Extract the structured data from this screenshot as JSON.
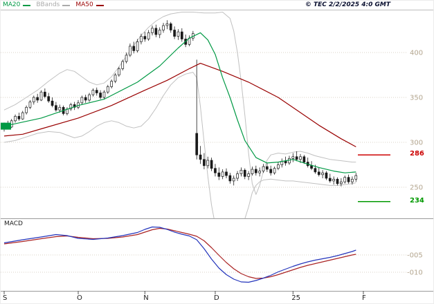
{
  "header": {
    "legend": [
      {
        "label": "MA20",
        "color": "#009944"
      },
      {
        "label": "BBands",
        "color": "#aaaaaa"
      },
      {
        "label": "MA50",
        "color": "#990000"
      }
    ],
    "copyright": "© TEC 2/2/2025 4:0 GMT"
  },
  "macd_panel": {
    "label": "MACD"
  },
  "colors": {
    "ma20": "#009944",
    "ma50": "#990000",
    "bbands": "#c0c0c0",
    "candle": "#1a1a1a",
    "gridline": "#d9d2c6",
    "axis_text": "#b3a58e",
    "separator": "#9a9a9a",
    "month_text": "#222222",
    "macd_line": "#2233bb",
    "macd_signal": "#aa2222"
  },
  "chart_data": {
    "type": "candlestick",
    "title": "",
    "x_axis": {
      "ticks": [
        {
          "label": "S",
          "i": 0
        },
        {
          "label": "O",
          "i": 20
        },
        {
          "label": "N",
          "i": 38
        },
        {
          "label": "D",
          "i": 57
        },
        {
          "label": "25",
          "i": 78
        },
        {
          "label": "F",
          "i": 97
        }
      ]
    },
    "y_axis": {
      "tick_values": [
        400,
        350,
        300,
        250
      ],
      "range": [
        215,
        447
      ],
      "grid": true
    },
    "levels": [
      {
        "value": 286,
        "color": "#cc0000",
        "role": "resistance"
      },
      {
        "value": 234,
        "color": "#009900",
        "role": "support"
      }
    ],
    "candles_ohlc": [
      [
        316,
        322,
        312,
        319
      ],
      [
        319,
        324,
        315,
        317
      ],
      [
        317,
        326,
        316,
        324
      ],
      [
        324,
        331,
        322,
        329
      ],
      [
        329,
        333,
        324,
        326
      ],
      [
        326,
        335,
        325,
        333
      ],
      [
        333,
        341,
        331,
        339
      ],
      [
        339,
        347,
        337,
        345
      ],
      [
        345,
        352,
        342,
        350
      ],
      [
        350,
        354,
        344,
        347
      ],
      [
        347,
        358,
        346,
        356
      ],
      [
        356,
        360,
        349,
        351
      ],
      [
        351,
        355,
        344,
        346
      ],
      [
        346,
        350,
        339,
        341
      ],
      [
        341,
        345,
        334,
        336
      ],
      [
        336,
        342,
        333,
        339
      ],
      [
        339,
        341,
        330,
        332
      ],
      [
        332,
        339,
        330,
        337
      ],
      [
        337,
        344,
        335,
        342
      ],
      [
        342,
        345,
        336,
        339
      ],
      [
        339,
        347,
        337,
        344
      ],
      [
        344,
        352,
        342,
        350
      ],
      [
        350,
        353,
        344,
        347
      ],
      [
        347,
        355,
        345,
        353
      ],
      [
        353,
        360,
        351,
        358
      ],
      [
        358,
        361,
        352,
        355
      ],
      [
        355,
        358,
        348,
        350
      ],
      [
        350,
        358,
        348,
        356
      ],
      [
        356,
        364,
        354,
        362
      ],
      [
        362,
        370,
        360,
        368
      ],
      [
        368,
        377,
        366,
        375
      ],
      [
        375,
        384,
        373,
        382
      ],
      [
        382,
        392,
        380,
        390
      ],
      [
        390,
        400,
        388,
        397
      ],
      [
        397,
        410,
        395,
        407
      ],
      [
        407,
        412,
        399,
        402
      ],
      [
        402,
        415,
        400,
        412
      ],
      [
        412,
        421,
        409,
        418
      ],
      [
        418,
        423,
        412,
        415
      ],
      [
        415,
        425,
        413,
        422
      ],
      [
        422,
        430,
        419,
        427
      ],
      [
        427,
        431,
        417,
        420
      ],
      [
        420,
        428,
        416,
        425
      ],
      [
        425,
        433,
        422,
        430
      ],
      [
        430,
        436,
        426,
        432
      ],
      [
        432,
        434,
        422,
        425
      ],
      [
        425,
        429,
        415,
        418
      ],
      [
        418,
        426,
        414,
        423
      ],
      [
        423,
        427,
        412,
        415
      ],
      [
        415,
        420,
        406,
        409
      ],
      [
        409,
        419,
        407,
        416
      ],
      [
        416,
        424,
        413,
        421
      ],
      [
        310,
        392,
        281,
        286
      ],
      [
        286,
        296,
        276,
        281
      ],
      [
        281,
        288,
        270,
        274
      ],
      [
        274,
        284,
        271,
        280
      ],
      [
        280,
        283,
        268,
        271
      ],
      [
        271,
        276,
        262,
        266
      ],
      [
        266,
        272,
        258,
        262
      ],
      [
        262,
        270,
        259,
        267
      ],
      [
        267,
        271,
        260,
        263
      ],
      [
        263,
        266,
        254,
        257
      ],
      [
        257,
        263,
        252,
        260
      ],
      [
        260,
        268,
        257,
        265
      ],
      [
        265,
        272,
        262,
        269
      ],
      [
        269,
        271,
        259,
        262
      ],
      [
        262,
        268,
        258,
        265
      ],
      [
        265,
        273,
        263,
        270
      ],
      [
        270,
        274,
        263,
        266
      ],
      [
        266,
        272,
        262,
        268
      ],
      [
        268,
        276,
        266,
        273
      ],
      [
        273,
        277,
        267,
        270
      ],
      [
        270,
        274,
        263,
        266
      ],
      [
        266,
        273,
        264,
        271
      ],
      [
        271,
        278,
        269,
        275
      ],
      [
        275,
        282,
        272,
        279
      ],
      [
        279,
        284,
        274,
        277
      ],
      [
        277,
        285,
        275,
        282
      ],
      [
        282,
        288,
        278,
        284
      ],
      [
        284,
        290,
        279,
        281
      ],
      [
        281,
        287,
        277,
        284
      ],
      [
        284,
        286,
        276,
        278
      ],
      [
        278,
        283,
        272,
        274
      ],
      [
        274,
        279,
        269,
        271
      ],
      [
        271,
        275,
        265,
        267
      ],
      [
        267,
        272,
        262,
        264
      ],
      [
        264,
        269,
        260,
        266
      ],
      [
        266,
        268,
        258,
        260
      ],
      [
        260,
        265,
        255,
        257
      ],
      [
        257,
        262,
        253,
        259
      ],
      [
        259,
        261,
        252,
        254
      ],
      [
        254,
        260,
        251,
        256
      ],
      [
        256,
        263,
        254,
        261
      ],
      [
        261,
        264,
        254,
        256
      ],
      [
        256,
        262,
        253,
        259
      ],
      [
        259,
        266,
        256,
        263
      ]
    ],
    "overlays": {
      "ma20": [
        [
          0,
          318
        ],
        [
          10,
          327
        ],
        [
          20,
          341
        ],
        [
          27,
          348
        ],
        [
          36,
          367
        ],
        [
          42,
          385
        ],
        [
          47,
          405
        ],
        [
          50,
          416
        ],
        [
          53,
          422
        ],
        [
          55,
          414
        ],
        [
          57,
          398
        ],
        [
          59,
          372
        ],
        [
          61,
          350
        ],
        [
          63,
          325
        ],
        [
          65,
          302
        ],
        [
          68,
          283
        ],
        [
          71,
          277
        ],
        [
          74,
          278
        ],
        [
          78,
          281
        ],
        [
          81,
          277
        ],
        [
          85,
          272
        ],
        [
          89,
          268
        ],
        [
          92,
          266
        ],
        [
          95,
          267
        ]
      ],
      "ma50": [
        [
          0,
          307
        ],
        [
          5,
          309
        ],
        [
          10,
          315
        ],
        [
          20,
          327
        ],
        [
          29,
          341
        ],
        [
          38,
          358
        ],
        [
          44,
          369
        ],
        [
          50,
          382
        ],
        [
          53,
          388
        ],
        [
          59,
          379
        ],
        [
          66,
          367
        ],
        [
          74,
          350
        ],
        [
          79,
          336
        ],
        [
          85,
          319
        ],
        [
          91,
          304
        ],
        [
          95,
          295
        ]
      ],
      "bb_upper": [
        [
          0,
          336
        ],
        [
          3,
          342
        ],
        [
          6,
          350
        ],
        [
          9,
          358
        ],
        [
          12,
          368
        ],
        [
          15,
          377
        ],
        [
          17,
          381
        ],
        [
          19,
          379
        ],
        [
          21,
          373
        ],
        [
          23,
          367
        ],
        [
          25,
          364
        ],
        [
          27,
          366
        ],
        [
          29,
          373
        ],
        [
          31,
          384
        ],
        [
          33,
          396
        ],
        [
          35,
          408
        ],
        [
          37,
          419
        ],
        [
          39,
          428
        ],
        [
          41,
          435
        ],
        [
          43,
          440
        ],
        [
          45,
          443
        ],
        [
          48,
          445
        ],
        [
          51,
          445
        ],
        [
          54,
          444
        ],
        [
          57,
          444
        ],
        [
          59,
          445
        ],
        [
          61,
          438
        ],
        [
          62,
          424
        ],
        [
          63,
          400
        ],
        [
          64,
          368
        ],
        [
          65,
          330
        ],
        [
          66,
          288
        ],
        [
          67,
          254
        ],
        [
          68,
          242
        ],
        [
          69,
          252
        ],
        [
          70,
          268
        ],
        [
          71,
          280
        ],
        [
          72,
          286
        ],
        [
          74,
          288
        ],
        [
          76,
          287
        ],
        [
          78,
          289
        ],
        [
          80,
          290
        ],
        [
          82,
          288
        ],
        [
          84,
          285
        ],
        [
          86,
          283
        ],
        [
          88,
          281
        ],
        [
          90,
          280
        ],
        [
          92,
          279
        ],
        [
          94,
          278
        ],
        [
          95,
          278
        ]
      ],
      "bb_lower": [
        [
          0,
          300
        ],
        [
          3,
          302
        ],
        [
          6,
          306
        ],
        [
          9,
          310
        ],
        [
          12,
          312
        ],
        [
          15,
          311
        ],
        [
          17,
          308
        ],
        [
          19,
          305
        ],
        [
          21,
          307
        ],
        [
          23,
          312
        ],
        [
          25,
          318
        ],
        [
          27,
          322
        ],
        [
          29,
          324
        ],
        [
          31,
          322
        ],
        [
          33,
          318
        ],
        [
          35,
          316
        ],
        [
          37,
          318
        ],
        [
          39,
          326
        ],
        [
          41,
          338
        ],
        [
          43,
          352
        ],
        [
          45,
          364
        ],
        [
          47,
          372
        ],
        [
          49,
          376
        ],
        [
          51,
          378
        ],
        [
          52,
          372
        ],
        [
          53,
          340
        ],
        [
          54,
          300
        ],
        [
          55,
          262
        ],
        [
          56,
          230
        ],
        [
          57,
          208
        ],
        [
          58,
          196
        ],
        [
          60,
          192
        ],
        [
          62,
          196
        ],
        [
          64,
          206
        ],
        [
          65,
          215
        ],
        [
          66,
          228
        ],
        [
          67,
          244
        ],
        [
          68,
          252
        ],
        [
          69,
          256
        ],
        [
          70,
          258
        ],
        [
          72,
          259
        ],
        [
          74,
          258
        ],
        [
          76,
          257
        ],
        [
          78,
          257
        ],
        [
          80,
          256
        ],
        [
          82,
          255
        ],
        [
          84,
          254
        ],
        [
          86,
          253
        ],
        [
          88,
          252
        ],
        [
          90,
          252
        ],
        [
          92,
          253
        ],
        [
          94,
          254
        ],
        [
          95,
          255
        ]
      ]
    },
    "macd": {
      "axis_ticks": [
        {
          "label": "-005",
          "value": -0.05
        },
        {
          "label": "-010",
          "value": -0.1
        }
      ],
      "line": [
        [
          0,
          -0.015
        ],
        [
          5,
          -0.006
        ],
        [
          10,
          0.002
        ],
        [
          14,
          0.009
        ],
        [
          17,
          0.006
        ],
        [
          20,
          -0.002
        ],
        [
          24,
          -0.005
        ],
        [
          28,
          -0.001
        ],
        [
          32,
          0.006
        ],
        [
          36,
          0.015
        ],
        [
          38,
          0.024
        ],
        [
          40,
          0.031
        ],
        [
          42,
          0.03
        ],
        [
          44,
          0.024
        ],
        [
          46,
          0.016
        ],
        [
          48,
          0.01
        ],
        [
          50,
          0.005
        ],
        [
          52,
          -0.006
        ],
        [
          54,
          -0.032
        ],
        [
          56,
          -0.062
        ],
        [
          58,
          -0.088
        ],
        [
          60,
          -0.107
        ],
        [
          62,
          -0.12
        ],
        [
          64,
          -0.128
        ],
        [
          66,
          -0.129
        ],
        [
          68,
          -0.124
        ],
        [
          70,
          -0.117
        ],
        [
          72,
          -0.109
        ],
        [
          74,
          -0.099
        ],
        [
          76,
          -0.091
        ],
        [
          78,
          -0.083
        ],
        [
          80,
          -0.076
        ],
        [
          82,
          -0.07
        ],
        [
          84,
          -0.065
        ],
        [
          86,
          -0.061
        ],
        [
          88,
          -0.057
        ],
        [
          90,
          -0.052
        ],
        [
          92,
          -0.046
        ],
        [
          94,
          -0.04
        ],
        [
          95,
          -0.036
        ]
      ],
      "signal": [
        [
          0,
          -0.018
        ],
        [
          5,
          -0.011
        ],
        [
          10,
          -0.003
        ],
        [
          14,
          0.003
        ],
        [
          17,
          0.005
        ],
        [
          20,
          0.001
        ],
        [
          24,
          -0.003
        ],
        [
          28,
          -0.002
        ],
        [
          32,
          0.002
        ],
        [
          36,
          0.009
        ],
        [
          38,
          0.016
        ],
        [
          40,
          0.023
        ],
        [
          42,
          0.027
        ],
        [
          44,
          0.025
        ],
        [
          46,
          0.02
        ],
        [
          48,
          0.015
        ],
        [
          50,
          0.01
        ],
        [
          52,
          0.004
        ],
        [
          54,
          -0.009
        ],
        [
          56,
          -0.029
        ],
        [
          58,
          -0.051
        ],
        [
          60,
          -0.072
        ],
        [
          62,
          -0.09
        ],
        [
          64,
          -0.104
        ],
        [
          66,
          -0.113
        ],
        [
          68,
          -0.118
        ],
        [
          70,
          -0.117
        ],
        [
          72,
          -0.113
        ],
        [
          74,
          -0.107
        ],
        [
          76,
          -0.1
        ],
        [
          78,
          -0.093
        ],
        [
          80,
          -0.086
        ],
        [
          82,
          -0.08
        ],
        [
          84,
          -0.075
        ],
        [
          86,
          -0.07
        ],
        [
          88,
          -0.065
        ],
        [
          90,
          -0.06
        ],
        [
          92,
          -0.055
        ],
        [
          94,
          -0.05
        ],
        [
          95,
          -0.048
        ]
      ],
      "range": [
        -0.154,
        0.054
      ]
    }
  }
}
